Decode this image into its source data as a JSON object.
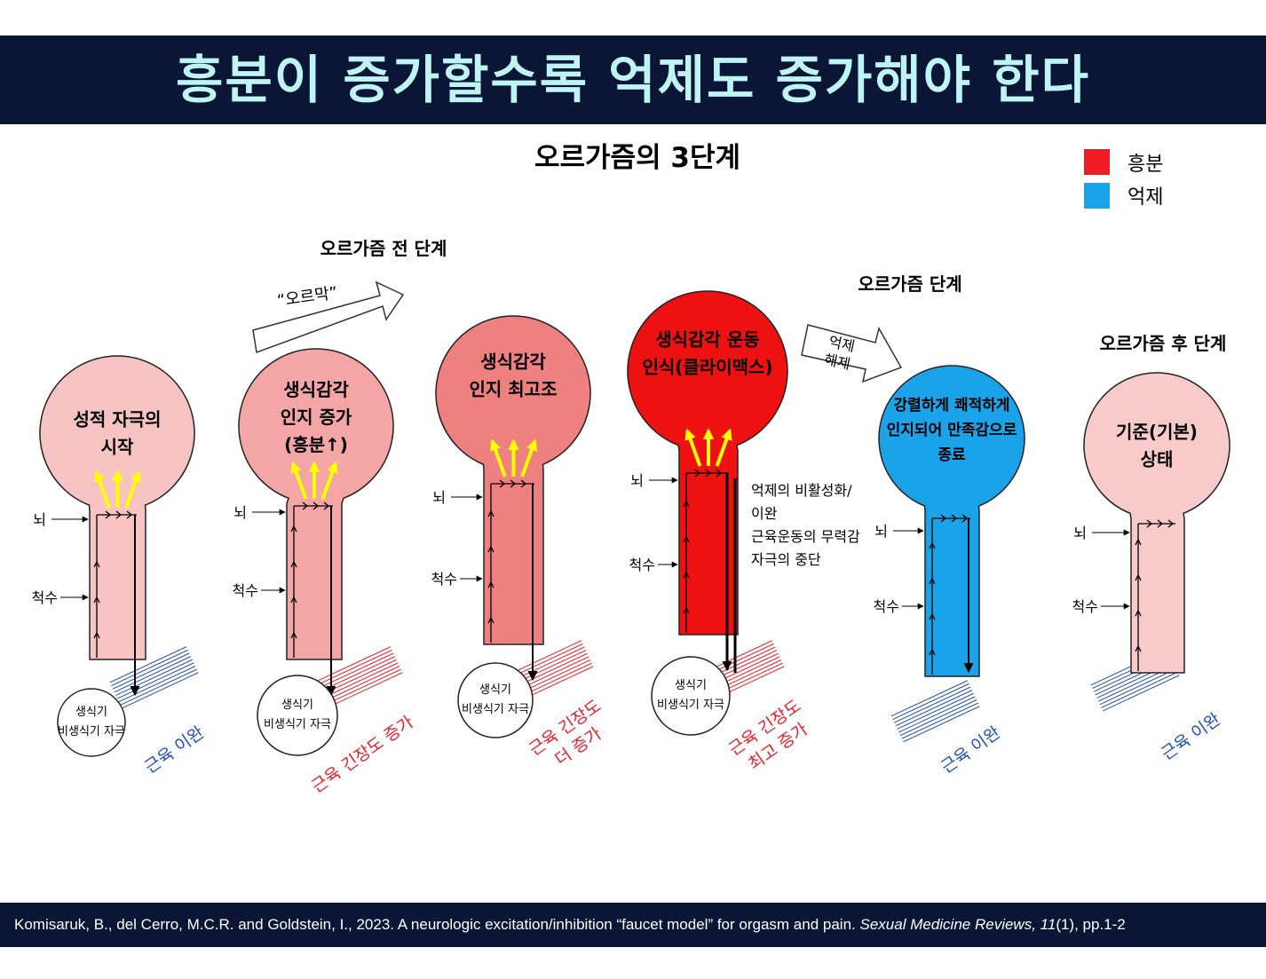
{
  "title": "흥분이 증가할수록 억제도 증가해야 한다",
  "subtitle": "오르가즘의 3단계",
  "legend": [
    {
      "label": "흥분",
      "color": "#ee1c25"
    },
    {
      "label": "억제",
      "color": "#1aa3e8"
    }
  ],
  "phases": {
    "pre": "오르가즘 전 단계",
    "orgasm": "오르가즘 단계",
    "post": "오르가즘 후 단계"
  },
  "arrows": {
    "climb": "“오르막”",
    "release_line1": "억제",
    "release_line2": "해제"
  },
  "labels": {
    "brain": "뇌",
    "spine": "척수",
    "stim_line1": "생식기",
    "stim_line2": "비생식기 자극"
  },
  "stages": [
    {
      "lines": [
        "성적 자극의",
        "시작"
      ],
      "muscle": [
        "근육 이완"
      ],
      "muscle_color": "#1f4fbf",
      "fill": "#f7c3c3"
    },
    {
      "lines": [
        "생식감각",
        "인지 증가",
        "(흥분↑)"
      ],
      "muscle": [
        "근육 긴장도 증가"
      ],
      "muscle_color": "#ee1c25",
      "fill": "#f4a6a6"
    },
    {
      "lines": [
        "생식감각",
        "인지 최고조"
      ],
      "muscle": [
        "근육 긴장도",
        "더 증가"
      ],
      "muscle_color": "#ee1c25",
      "fill": "#ef8080"
    },
    {
      "lines": [
        "생식감각 운동",
        "인식(클라이맥스)"
      ],
      "muscle": [
        "근육 긴장도",
        "최고 증가"
      ],
      "muscle_color": "#ee1c25",
      "fill": "#ee1111"
    },
    {
      "lines": [
        "강렬하게 쾌적하게",
        "인지되어 만족감으로",
        "종료"
      ],
      "muscle": [
        "근육 이완"
      ],
      "muscle_color": "#1f4fbf",
      "fill": "#1aa3e8"
    },
    {
      "lines": [
        "기준(기본)",
        "상태"
      ],
      "muscle": [
        "근육 이완"
      ],
      "muscle_color": "#1f4fbf",
      "fill": "#f8caca"
    }
  ],
  "climax_notes": [
    "억제의 비활성화/",
    "이완",
    "근육운동의 무력감",
    "자극의 중단"
  ],
  "citation": {
    "text": "Komisaruk, B., del Cerro, M.C.R. and Goldstein, I., 2023. A neurologic excitation/inhibition “faucet model” for orgasm and pain.",
    "journal": "Sexual Medicine Reviews,",
    "volume": "11",
    "issue_pages": "(1), pp.1-2"
  },
  "colors": {
    "banner": "#0b1535",
    "title_text": "#bff4f4",
    "stimulus_arrow": "#ffff00"
  }
}
